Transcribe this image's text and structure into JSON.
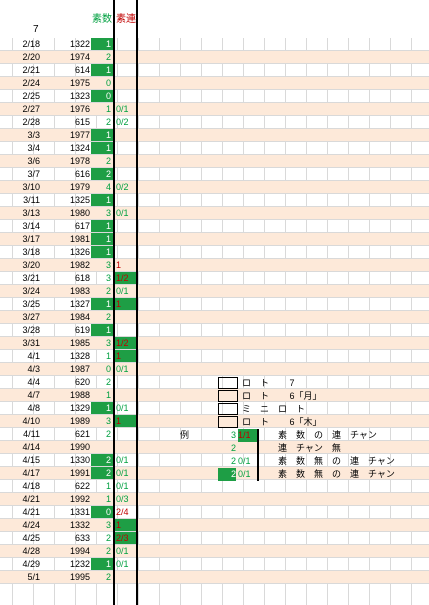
{
  "header": {
    "col_a_top": "7",
    "count_label": "素数",
    "ren_label": "素連"
  },
  "colors": {
    "green": "#1e9e45",
    "text_green": "#00a040",
    "red": "#c00000",
    "alt_row": "#fde9d9"
  },
  "rows": [
    {
      "date": "2/18",
      "num": "1322",
      "cnt": "1",
      "cg": true,
      "ren": ""
    },
    {
      "date": "2/20",
      "num": "1974",
      "cnt": "2",
      "cg": false,
      "ren": ""
    },
    {
      "date": "2/21",
      "num": "614",
      "cnt": "1",
      "cg": true,
      "ren": ""
    },
    {
      "date": "2/24",
      "num": "1975",
      "cnt": "0",
      "cg": false,
      "ren": ""
    },
    {
      "date": "2/25",
      "num": "1323",
      "cnt": "0",
      "cg": true,
      "ren": ""
    },
    {
      "date": "2/27",
      "num": "1976",
      "cnt": "1",
      "cg": false,
      "ren": "0/1"
    },
    {
      "date": "2/28",
      "num": "615",
      "cnt": "2",
      "cg": false,
      "ren": "0/2"
    },
    {
      "date": "3/3",
      "num": "1977",
      "cnt": "1",
      "cg": true,
      "ren": ""
    },
    {
      "date": "3/4",
      "num": "1324",
      "cnt": "1",
      "cg": true,
      "ren": ""
    },
    {
      "date": "3/6",
      "num": "1978",
      "cnt": "2",
      "cg": false,
      "ren": ""
    },
    {
      "date": "3/7",
      "num": "616",
      "cnt": "2",
      "cg": true,
      "ren": ""
    },
    {
      "date": "3/10",
      "num": "1979",
      "cnt": "4",
      "cg": false,
      "ren": "0/2"
    },
    {
      "date": "3/11",
      "num": "1325",
      "cnt": "1",
      "cg": true,
      "ren": ""
    },
    {
      "date": "3/13",
      "num": "1980",
      "cnt": "3",
      "cg": false,
      "ren": "0/1"
    },
    {
      "date": "3/14",
      "num": "617",
      "cnt": "1",
      "cg": true,
      "ren": ""
    },
    {
      "date": "3/17",
      "num": "1981",
      "cnt": "1",
      "cg": true,
      "ren": ""
    },
    {
      "date": "3/18",
      "num": "1326",
      "cnt": "1",
      "cg": true,
      "ren": ""
    },
    {
      "date": "3/20",
      "num": "1982",
      "cnt": "3",
      "cg": false,
      "ren": "1",
      "rr": true
    },
    {
      "date": "3/21",
      "num": "618",
      "cnt": "3",
      "cg": false,
      "ren": "1/2",
      "rr": true,
      "rg": true
    },
    {
      "date": "3/24",
      "num": "1983",
      "cnt": "2",
      "cg": false,
      "ren": "0/1"
    },
    {
      "date": "3/25",
      "num": "1327",
      "cnt": "1",
      "cg": true,
      "ren": "1",
      "rr": true,
      "rg": true
    },
    {
      "date": "3/27",
      "num": "1984",
      "cnt": "2",
      "cg": false,
      "ren": ""
    },
    {
      "date": "3/28",
      "num": "619",
      "cnt": "1",
      "cg": true,
      "ren": ""
    },
    {
      "date": "3/31",
      "num": "1985",
      "cnt": "3",
      "cg": false,
      "ren": "1/2",
      "rr": true,
      "rg": true
    },
    {
      "date": "4/1",
      "num": "1328",
      "cnt": "1",
      "cg": false,
      "ren": "1",
      "rr": true,
      "rg": true
    },
    {
      "date": "4/3",
      "num": "1987",
      "cnt": "0",
      "cg": false,
      "ren": "0/1"
    },
    {
      "date": "4/4",
      "num": "620",
      "cnt": "2",
      "cg": false,
      "ren": ""
    },
    {
      "date": "4/7",
      "num": "1988",
      "cnt": "1",
      "cg": false,
      "ren": ""
    },
    {
      "date": "4/8",
      "num": "1329",
      "cnt": "1",
      "cg": true,
      "ren": "0/1"
    },
    {
      "date": "4/10",
      "num": "1989",
      "cnt": "3",
      "cg": false,
      "ren": "1",
      "rr": true,
      "rg": true
    },
    {
      "date": "4/11",
      "num": "621",
      "cnt": "2",
      "cg": false,
      "ren": ""
    },
    {
      "date": "4/14",
      "num": "1990",
      "cnt": "",
      "cg": false,
      "ren": ""
    },
    {
      "date": "4/15",
      "num": "1330",
      "cnt": "2",
      "cg": true,
      "ren": "0/1"
    },
    {
      "date": "4/17",
      "num": "1991",
      "cnt": "2",
      "cg": true,
      "ren": "0/1"
    },
    {
      "date": "4/18",
      "num": "622",
      "cnt": "1",
      "cg": false,
      "ren": "0/1"
    },
    {
      "date": "4/21",
      "num": "1992",
      "cnt": "1",
      "cg": false,
      "ren": "0/3"
    },
    {
      "date": "4/21",
      "num": "1331",
      "cnt": "0",
      "cg": true,
      "ren": "2/4",
      "rr": true
    },
    {
      "date": "4/24",
      "num": "1332",
      "cnt": "3",
      "cg": false,
      "ren": "1",
      "rr": true,
      "rg": true
    },
    {
      "date": "4/25",
      "num": "633",
      "cnt": "2",
      "cg": false,
      "ren": "2/3",
      "rr": true,
      "rg": true
    },
    {
      "date": "4/28",
      "num": "1994",
      "cnt": "2",
      "cg": false,
      "ren": "0/1"
    },
    {
      "date": "4/29",
      "num": "1232",
      "cnt": "1",
      "cg": true,
      "ren": "0/1"
    },
    {
      "date": "5/1",
      "num": "1995",
      "cnt": "2",
      "cg": false,
      "ren": ""
    }
  ],
  "legend": {
    "rows": [
      {
        "text": "ロ　ト　　 7"
      },
      {
        "text": "ロ　ト　　 6「月」"
      },
      {
        "text": "ミ　ニ　ロ　ト"
      },
      {
        "text": "ロ　ト　　 6「木」"
      }
    ],
    "example_label": "例",
    "ex1_num": "3",
    "ex1_ren": "1/1",
    "ex1_text": "素　数　の　連　チャン",
    "ex2_num": "2",
    "ex2_text": "連　チャン　無",
    "ex3_num": "2",
    "ex3_ren": "0/1",
    "ex3_text": "素　数　無　の　連　チャン",
    "ex4_num": "2",
    "ex4_ren": "0/1",
    "ex4_text": "素　数　無　の　連　チャン"
  }
}
